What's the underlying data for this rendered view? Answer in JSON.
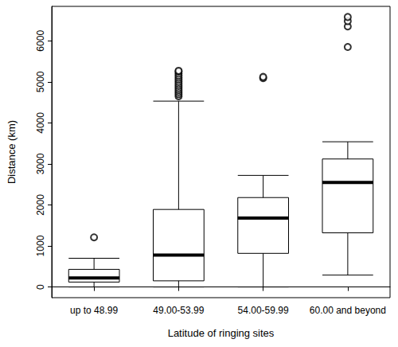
{
  "chart_data": {
    "type": "boxplot",
    "x_label": "Latitude of ringing sites",
    "y_label": "Distance (km)",
    "categories": [
      "up to 48.99",
      "49.00-53.99",
      "54.00-59.99",
      "60.00 and beyond"
    ],
    "boxes": [
      {
        "min": 0,
        "q1": 120,
        "median": 220,
        "q3": 430,
        "max": 700
      },
      {
        "min": 0,
        "q1": 150,
        "median": 780,
        "q3": 1890,
        "max": 4530
      },
      {
        "min": 0,
        "q1": 820,
        "median": 1680,
        "q3": 2180,
        "max": 2720
      },
      {
        "min": 290,
        "q1": 1320,
        "median": 2550,
        "q3": 3120,
        "max": 3540
      }
    ],
    "outliers": [
      [
        1210
      ],
      [
        4650,
        4700,
        4750,
        4800,
        4850,
        4900,
        4950,
        5000,
        5050,
        5100,
        5150,
        5200,
        5250,
        5270
      ],
      [
        5090,
        5120
      ],
      [
        5850,
        6350,
        6480,
        6580
      ]
    ],
    "color": "#000000",
    "marker": "circle",
    "ylim": [
      -260,
      6840
    ],
    "yticks": [
      0,
      1000,
      2000,
      3000,
      4000,
      5000,
      6000
    ],
    "grid": false
  }
}
